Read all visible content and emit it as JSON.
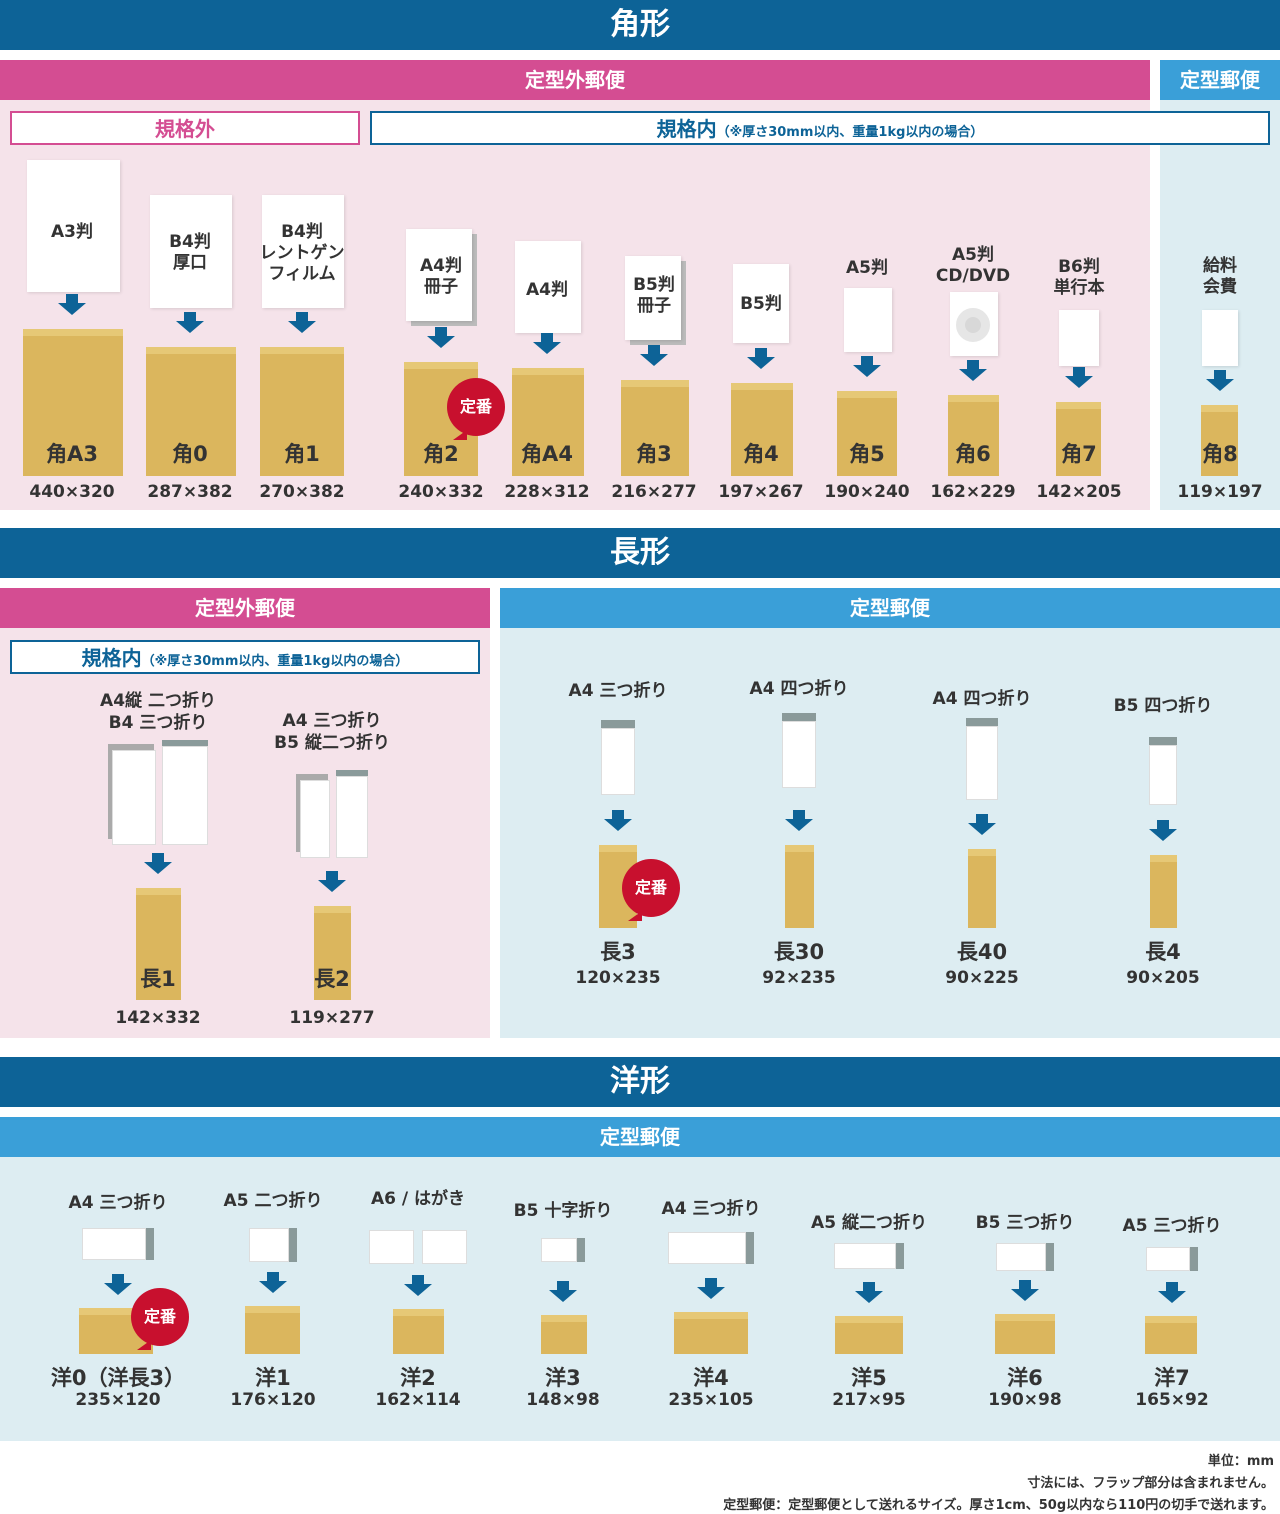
{
  "kaku": {
    "title": "角形",
    "teikeigai": "定型外郵便",
    "teikei": "定型郵便",
    "kikakugai": "規格外",
    "kikakunai": "規格内",
    "kikakunai_note": "（※厚さ30mm以内、重量1kg以内の場合）",
    "items": [
      {
        "paper": "A3判",
        "env": "角A3",
        "size": "440×320"
      },
      {
        "paper": "B4判\n厚口",
        "env": "角0",
        "size": "287×382"
      },
      {
        "paper": "B4判\nレントゲン\nフィルム",
        "env": "角1",
        "size": "270×382"
      },
      {
        "paper": "A4判\n冊子",
        "env": "角2",
        "size": "240×332",
        "badge": "定番"
      },
      {
        "paper": "A4判",
        "env": "角A4",
        "size": "228×312"
      },
      {
        "paper": "B5判\n冊子",
        "env": "角3",
        "size": "216×277"
      },
      {
        "paper": "B5判",
        "env": "角4",
        "size": "197×267"
      },
      {
        "paper": "A5判",
        "env": "角5",
        "size": "190×240"
      },
      {
        "paper": "A5判\nCD/DVD",
        "env": "角6",
        "size": "162×229"
      },
      {
        "paper": "B6判\n単行本",
        "env": "角7",
        "size": "142×205"
      },
      {
        "paper": "給料\n会費",
        "env": "角8",
        "size": "119×197"
      }
    ]
  },
  "naga": {
    "title": "長形",
    "teikeigai": "定型外郵便",
    "teikei": "定型郵便",
    "kikakunai": "規格内",
    "kikakunai_note": "（※厚さ30mm以内、重量1kg以内の場合）",
    "items": [
      {
        "paper": "A4縦 二つ折り\nB4 三つ折り",
        "env": "長1",
        "size": "142×332"
      },
      {
        "paper": "A4 三つ折り\nB5 縦二つ折り",
        "env": "長2",
        "size": "119×277"
      },
      {
        "paper": "A4 三つ折り",
        "env": "長3",
        "size": "120×235",
        "badge": "定番"
      },
      {
        "paper": "A4 四つ折り",
        "env": "長30",
        "size": "92×235"
      },
      {
        "paper": "A4 四つ折り",
        "env": "長40",
        "size": "90×225"
      },
      {
        "paper": "B5 四つ折り",
        "env": "長4",
        "size": "90×205"
      }
    ]
  },
  "you": {
    "title": "洋形",
    "teikei": "定型郵便",
    "items": [
      {
        "paper": "A4 三つ折り",
        "env": "洋0（洋長3）",
        "size": "235×120",
        "badge": "定番"
      },
      {
        "paper": "A5 二つ折り",
        "env": "洋1",
        "size": "176×120"
      },
      {
        "paper": "A6 / はがき",
        "env": "洋2",
        "size": "162×114"
      },
      {
        "paper": "B5 十字折り",
        "env": "洋3",
        "size": "148×98"
      },
      {
        "paper": "A4 三つ折り",
        "env": "洋4",
        "size": "235×105"
      },
      {
        "paper": "A5 縦二つ折り",
        "env": "洋5",
        "size": "217×95"
      },
      {
        "paper": "B5 三つ折り",
        "env": "洋6",
        "size": "190×98"
      },
      {
        "paper": "A5 三つ折り",
        "env": "洋7",
        "size": "165×92"
      }
    ]
  },
  "notes": [
    "単位：mm",
    "寸法には、フラップ部分は含まれません。",
    "定型郵便：定型郵便として送れるサイズ。厚さ1cm、50g以内なら110円の切手で送れます。"
  ],
  "colors": {
    "navy": "#0d6397",
    "pink": "#d44d92",
    "blue": "#3a9fd8",
    "kraft": "#dbb65d",
    "red": "#c8102e"
  }
}
